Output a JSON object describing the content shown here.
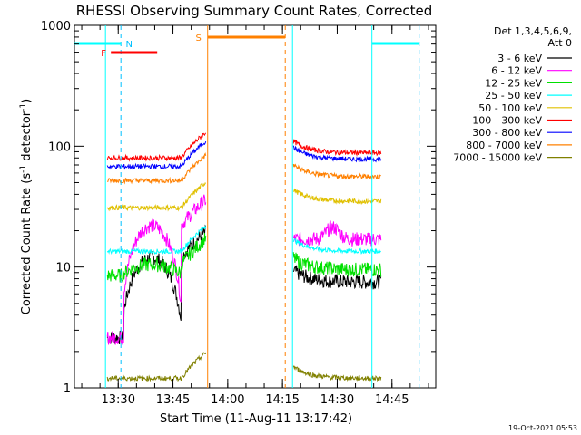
{
  "chart_data": {
    "type": "line",
    "title": "RHESSI Observing Summary Count Rates, Corrected",
    "xlabel": "Start Time (11-Aug-11 13:17:42)",
    "ylabel_main": "Corrected Count Rate (s",
    "ylabel_sup1": "-1",
    "ylabel_mid": " detector",
    "ylabel_sup2": "-1",
    "ylabel_end": ")",
    "timestamp": "19-Oct-2021 05:53",
    "yscale": "log",
    "ylim": [
      1,
      1000
    ],
    "xlim_minutes": [
      13.3,
      14.95
    ],
    "y_ticks": [
      {
        "value": 1,
        "label": "1"
      },
      {
        "value": 10,
        "label": "10"
      },
      {
        "value": 100,
        "label": "100"
      },
      {
        "value": 1000,
        "label": "1000"
      }
    ],
    "x_ticks": [
      {
        "value": 13.5,
        "label": "13:30"
      },
      {
        "value": 13.75,
        "label": "13:45"
      },
      {
        "value": 14.0,
        "label": "14:00"
      },
      {
        "value": 14.25,
        "label": "14:15"
      },
      {
        "value": 14.5,
        "label": "14:30"
      },
      {
        "value": 14.75,
        "label": "14:45"
      }
    ],
    "legend_header_1": "Det 1,3,4,5,6,9,",
    "legend_header_2": "Att 0",
    "series": [
      {
        "name": "3 - 6 keV",
        "color": "#000000",
        "base": [
          2.6,
          12,
          7.5
        ]
      },
      {
        "name": "6 - 12 keV",
        "color": "#ff00ff",
        "base": [
          2.6,
          22,
          17
        ]
      },
      {
        "name": "12 - 25 keV",
        "color": "#00e000",
        "base": [
          8.6,
          10.5,
          9.5
        ]
      },
      {
        "name": "25 - 50 keV",
        "color": "#00ffff",
        "base": [
          13,
          13.5,
          13.5
        ]
      },
      {
        "name": "50 - 100 keV",
        "color": "#e0c000",
        "base": [
          31,
          31,
          35
        ]
      },
      {
        "name": "100 - 300 keV",
        "color": "#ff0000",
        "base": [
          80,
          80,
          88
        ]
      },
      {
        "name": "300 - 800 keV",
        "color": "#0000ff",
        "base": [
          68,
          68,
          78
        ]
      },
      {
        "name": "800 - 7000 keV",
        "color": "#ff8000",
        "base": [
          52,
          52,
          56
        ]
      },
      {
        "name": "7000 - 15000 keV",
        "color": "#808000",
        "base": [
          1.2,
          1.2,
          1.2
        ]
      }
    ],
    "segments_minutes": [
      [
        13.45,
        13.9
      ],
      [
        14.3,
        14.7
      ]
    ],
    "annotations": [
      {
        "label": "N",
        "color": "#00c0ff"
      },
      {
        "label": "F",
        "color": "#ff0000"
      },
      {
        "label": "S",
        "color": "#ff8000"
      }
    ]
  }
}
